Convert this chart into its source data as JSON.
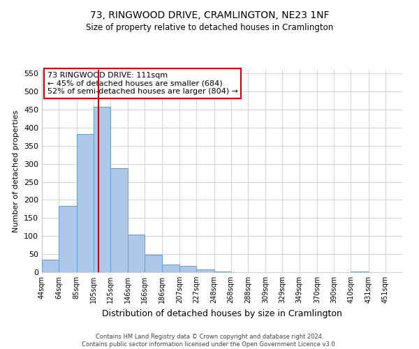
{
  "title": "73, RINGWOOD DRIVE, CRAMLINGTON, NE23 1NF",
  "subtitle": "Size of property relative to detached houses in Cramlington",
  "xlabel": "Distribution of detached houses by size in Cramlington",
  "ylabel": "Number of detached properties",
  "bar_left_edges": [
    44,
    64,
    85,
    105,
    125,
    146,
    166,
    186,
    207,
    227,
    248,
    268,
    288,
    309,
    329,
    349,
    370,
    390,
    410,
    431
  ],
  "bar_widths": [
    20,
    21,
    20,
    20,
    21,
    20,
    20,
    21,
    20,
    21,
    20,
    20,
    21,
    20,
    20,
    21,
    20,
    20,
    21,
    20
  ],
  "bar_heights": [
    35,
    183,
    383,
    458,
    288,
    105,
    49,
    22,
    17,
    8,
    1,
    0,
    0,
    0,
    0,
    0,
    0,
    0,
    1,
    0
  ],
  "tick_labels": [
    "44sqm",
    "64sqm",
    "85sqm",
    "105sqm",
    "125sqm",
    "146sqm",
    "166sqm",
    "186sqm",
    "207sqm",
    "227sqm",
    "248sqm",
    "268sqm",
    "288sqm",
    "309sqm",
    "329sqm",
    "349sqm",
    "370sqm",
    "390sqm",
    "410sqm",
    "431sqm",
    "451sqm"
  ],
  "tick_positions": [
    44,
    64,
    85,
    105,
    125,
    146,
    166,
    186,
    207,
    227,
    248,
    268,
    288,
    309,
    329,
    349,
    370,
    390,
    410,
    431,
    451
  ],
  "bar_color": "#aec6e8",
  "bar_edge_color": "#5a9fd4",
  "reference_line_x": 111,
  "reference_line_color": "#cc0000",
  "ylim": [
    0,
    560
  ],
  "yticks": [
    0,
    50,
    100,
    150,
    200,
    250,
    300,
    350,
    400,
    450,
    500,
    550
  ],
  "annotation_title": "73 RINGWOOD DRIVE: 111sqm",
  "annotation_line1": "← 45% of detached houses are smaller (684)",
  "annotation_line2": "52% of semi-detached houses are larger (804) →",
  "annotation_box_color": "#ffffff",
  "annotation_box_edge_color": "#cc0000",
  "footer_line1": "Contains HM Land Registry data © Crown copyright and database right 2024.",
  "footer_line2": "Contains public sector information licensed under the Open Government Licence v3.0.",
  "background_color": "#ffffff",
  "grid_color": "#cccccc",
  "title_fontsize": 10,
  "subtitle_fontsize": 8.5,
  "ylabel_fontsize": 8,
  "xlabel_fontsize": 9,
  "tick_fontsize": 7,
  "annotation_fontsize": 8,
  "footer_fontsize": 6
}
